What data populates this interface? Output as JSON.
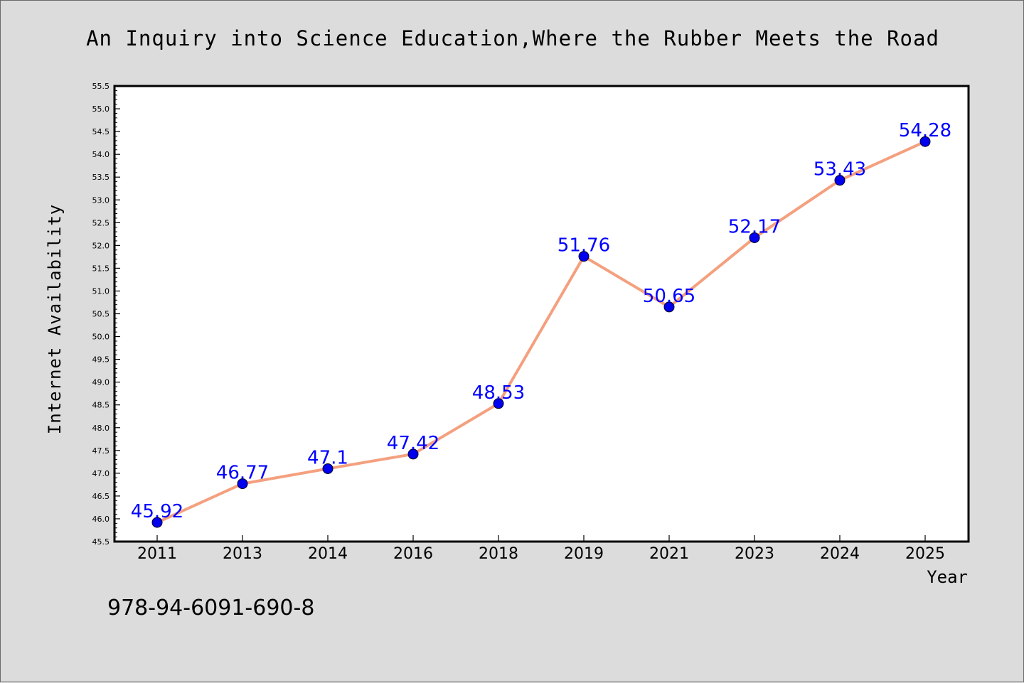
{
  "chart_data": {
    "type": "line",
    "title": "An Inquiry into Science Education,Where the Rubber Meets the Road",
    "xlabel": "Year",
    "ylabel": "Internet Availability",
    "categories": [
      "2011",
      "2013",
      "2014",
      "2016",
      "2018",
      "2019",
      "2021",
      "2023",
      "2024",
      "2025"
    ],
    "series": [
      {
        "values": [
          45.92,
          46.77,
          47.1,
          47.42,
          48.53,
          51.76,
          50.65,
          52.17,
          53.43,
          54.28
        ],
        "data_labels": [
          "45.92",
          "46.77",
          "47.1",
          "47.42",
          "48.53",
          "51.76",
          "50.65",
          "52.17",
          "53.43",
          "54.28"
        ]
      }
    ],
    "ylim": [
      45.5,
      55.5
    ],
    "yticks": [
      "45.5",
      "46.0",
      "46.5",
      "47.0",
      "47.5",
      "48.0",
      "48.5",
      "49.0",
      "49.5",
      "50.0",
      "50.5",
      "51.0",
      "51.5",
      "52.0",
      "52.5",
      "53.0",
      "53.5",
      "54.0",
      "54.5",
      "55.0",
      "55.5"
    ],
    "grid": false,
    "legend": "none",
    "colors": {
      "line": "#f4a07f",
      "marker": "#0000ee",
      "data_label": "#0000ff",
      "background": "#dcdcdc",
      "plot_background": "#ffffff"
    }
  },
  "footer_code": "978-94-6091-690-8"
}
